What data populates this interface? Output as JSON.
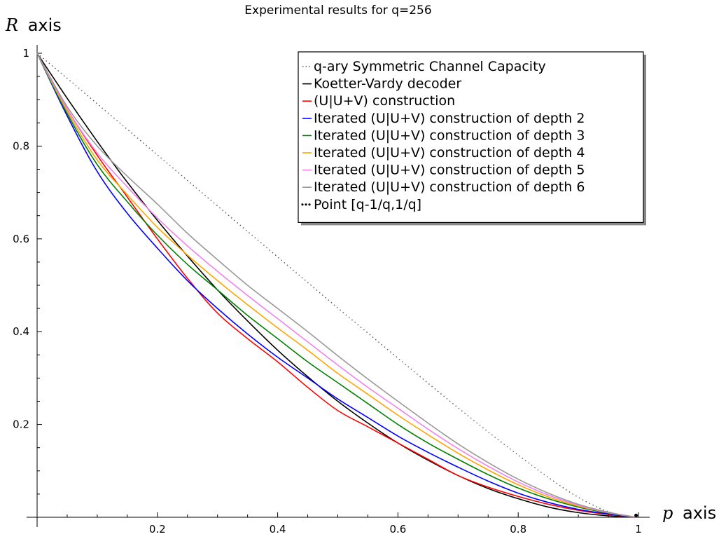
{
  "chart_data": {
    "type": "line",
    "title": "Experimental results for q=256",
    "xlabel": {
      "var": "p",
      "word": "axis"
    },
    "ylabel": {
      "var": "R",
      "word": "axis"
    },
    "xlim": [
      0,
      1
    ],
    "ylim": [
      0,
      1
    ],
    "xticks": [
      0.2,
      0.4,
      0.6,
      0.8,
      1
    ],
    "xtick_labels": [
      "0.2",
      "0.4",
      "0.6",
      "0.8",
      "1"
    ],
    "yticks": [
      0.2,
      0.4,
      0.6,
      0.8,
      1
    ],
    "ytick_labels": [
      "0.2",
      "0.4",
      "0.6",
      "0.8",
      "1"
    ],
    "grid": false,
    "legend_position": "top-right",
    "series": [
      {
        "name": "q-ary Symmetric Channel Capacity",
        "color": "#555555",
        "style": "dotted",
        "x": [
          0,
          0.05,
          0.1,
          0.15,
          0.2,
          0.25,
          0.3,
          0.35,
          0.4,
          0.45,
          0.5,
          0.55,
          0.6,
          0.65,
          0.7,
          0.75,
          0.8,
          0.85,
          0.9,
          0.95,
          0.996
        ],
        "y": [
          1,
          0.946,
          0.891,
          0.836,
          0.781,
          0.726,
          0.671,
          0.616,
          0.561,
          0.506,
          0.451,
          0.397,
          0.343,
          0.289,
          0.236,
          0.184,
          0.134,
          0.086,
          0.043,
          0.012,
          0
        ]
      },
      {
        "name": "Koetter-Vardy decoder",
        "color": "#000000",
        "style": "solid",
        "x": [
          0,
          0.05,
          0.1,
          0.15,
          0.2,
          0.25,
          0.3,
          0.35,
          0.4,
          0.45,
          0.5,
          0.55,
          0.6,
          0.65,
          0.7,
          0.75,
          0.8,
          0.85,
          0.9,
          0.95,
          0.996
        ],
        "y": [
          1,
          0.903,
          0.81,
          0.722,
          0.64,
          0.563,
          0.49,
          0.423,
          0.36,
          0.303,
          0.25,
          0.203,
          0.16,
          0.123,
          0.09,
          0.062,
          0.04,
          0.022,
          0.01,
          0.003,
          0
        ]
      },
      {
        "name": "(U|U+V) construction",
        "color": "#ff0000",
        "style": "solid",
        "x": [
          0,
          0.05,
          0.1,
          0.15,
          0.2,
          0.25,
          0.3,
          0.35,
          0.4,
          0.45,
          0.5,
          0.55,
          0.6,
          0.65,
          0.7,
          0.75,
          0.8,
          0.85,
          0.9,
          0.95,
          0.996
        ],
        "y": [
          1,
          0.88,
          0.78,
          0.69,
          0.6,
          0.515,
          0.44,
          0.385,
          0.335,
          0.28,
          0.23,
          0.195,
          0.16,
          0.125,
          0.09,
          0.065,
          0.045,
          0.028,
          0.015,
          0.006,
          0
        ]
      },
      {
        "name": "Iterated (U|U+V) construction of depth 2",
        "color": "#0000ff",
        "style": "solid",
        "x": [
          0,
          0.05,
          0.1,
          0.15,
          0.2,
          0.25,
          0.3,
          0.35,
          0.4,
          0.45,
          0.5,
          0.55,
          0.6,
          0.65,
          0.7,
          0.75,
          0.8,
          0.85,
          0.9,
          0.95,
          0.996
        ],
        "y": [
          1,
          0.865,
          0.745,
          0.655,
          0.58,
          0.51,
          0.45,
          0.395,
          0.345,
          0.3,
          0.255,
          0.215,
          0.175,
          0.14,
          0.108,
          0.078,
          0.052,
          0.032,
          0.017,
          0.007,
          0
        ]
      },
      {
        "name": "Iterated (U|U+V) construction of depth 3",
        "color": "#008000",
        "style": "solid",
        "x": [
          0,
          0.05,
          0.1,
          0.15,
          0.2,
          0.25,
          0.3,
          0.35,
          0.4,
          0.45,
          0.5,
          0.55,
          0.6,
          0.65,
          0.7,
          0.75,
          0.8,
          0.85,
          0.9,
          0.95,
          0.996
        ],
        "y": [
          1,
          0.87,
          0.76,
          0.68,
          0.608,
          0.545,
          0.49,
          0.435,
          0.385,
          0.335,
          0.29,
          0.245,
          0.2,
          0.16,
          0.125,
          0.092,
          0.063,
          0.04,
          0.022,
          0.009,
          0
        ]
      },
      {
        "name": "Iterated (U|U+V) construction of depth 4",
        "color": "#ffa500",
        "style": "solid",
        "x": [
          0,
          0.05,
          0.1,
          0.15,
          0.2,
          0.25,
          0.3,
          0.35,
          0.4,
          0.45,
          0.5,
          0.55,
          0.6,
          0.65,
          0.7,
          0.75,
          0.8,
          0.85,
          0.9,
          0.95,
          0.996
        ],
        "y": [
          1,
          0.875,
          0.77,
          0.695,
          0.625,
          0.565,
          0.51,
          0.458,
          0.408,
          0.36,
          0.31,
          0.265,
          0.22,
          0.178,
          0.138,
          0.102,
          0.07,
          0.044,
          0.024,
          0.01,
          0
        ]
      },
      {
        "name": "Iterated (U|U+V) construction of depth 5",
        "color": "#ee82ee",
        "style": "solid",
        "x": [
          0,
          0.05,
          0.1,
          0.15,
          0.2,
          0.25,
          0.3,
          0.35,
          0.4,
          0.45,
          0.5,
          0.55,
          0.6,
          0.65,
          0.7,
          0.75,
          0.8,
          0.85,
          0.9,
          0.95,
          0.996
        ],
        "y": [
          1,
          0.88,
          0.785,
          0.712,
          0.645,
          0.585,
          0.53,
          0.478,
          0.428,
          0.378,
          0.328,
          0.28,
          0.235,
          0.19,
          0.148,
          0.11,
          0.076,
          0.048,
          0.026,
          0.01,
          0
        ]
      },
      {
        "name": "Iterated (U|U+V) construction of depth 6",
        "color": "#999999",
        "style": "solid",
        "x": [
          0,
          0.05,
          0.1,
          0.15,
          0.2,
          0.25,
          0.3,
          0.35,
          0.4,
          0.45,
          0.5,
          0.55,
          0.6,
          0.65,
          0.7,
          0.75,
          0.8,
          0.85,
          0.9,
          0.95,
          0.996
        ],
        "y": [
          1,
          0.885,
          0.8,
          0.735,
          0.675,
          0.612,
          0.555,
          0.5,
          0.45,
          0.4,
          0.348,
          0.298,
          0.25,
          0.203,
          0.158,
          0.118,
          0.082,
          0.052,
          0.028,
          0.011,
          0
        ]
      },
      {
        "name": "Point [q-1/q,1/q]",
        "color": "#000000",
        "style": "points",
        "x": [
          0.996
        ],
        "y": [
          0.004
        ]
      }
    ]
  }
}
